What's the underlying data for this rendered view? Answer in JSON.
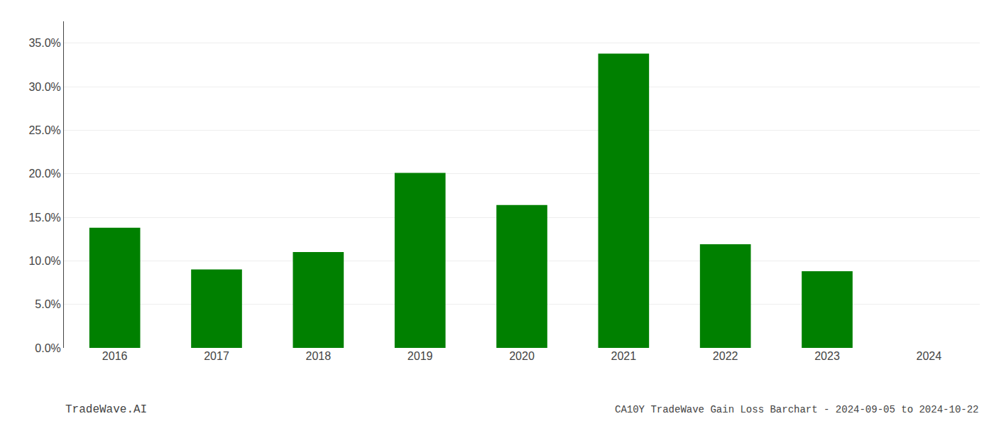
{
  "chart_data": {
    "type": "bar",
    "title": "CA10Y TradeWave Gain Loss Barchart - 2024-09-05 to 2024-10-22",
    "annotations": [
      "TradeWave.AI"
    ],
    "categories": [
      "2016",
      "2017",
      "2018",
      "2019",
      "2020",
      "2021",
      "2022",
      "2023",
      "2024"
    ],
    "values": [
      0.138,
      0.09,
      0.11,
      0.201,
      0.164,
      0.338,
      0.119,
      0.088,
      0.0
    ],
    "color": "#008000",
    "ylim": [
      0,
      0.375
    ],
    "yticks": [
      {
        "value": 0.0,
        "label": "0.0%"
      },
      {
        "value": 0.05,
        "label": "5.0%"
      },
      {
        "value": 0.1,
        "label": "10.0%"
      },
      {
        "value": 0.15,
        "label": "15.0%"
      },
      {
        "value": 0.2,
        "label": "20.0%"
      },
      {
        "value": 0.25,
        "label": "25.0%"
      },
      {
        "value": 0.3,
        "label": "30.0%"
      },
      {
        "value": 0.35,
        "label": "35.0%"
      }
    ],
    "grid": true
  }
}
